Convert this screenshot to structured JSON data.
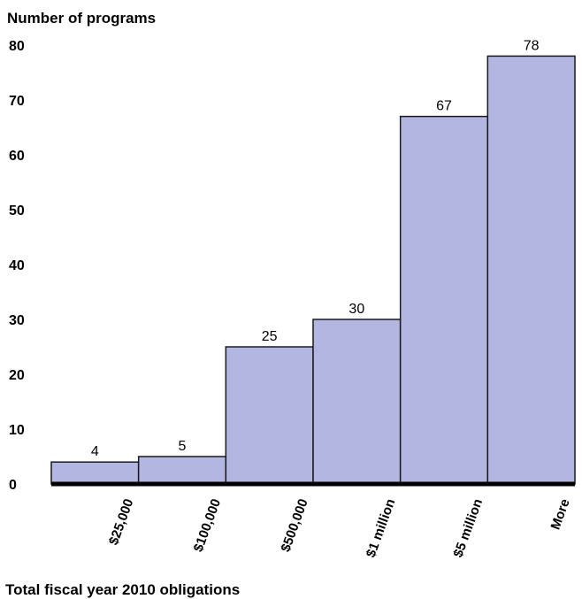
{
  "chart_data": {
    "type": "bar",
    "ylabel": "Number of programs",
    "xlabel": "Total fiscal year 2010 obligations",
    "categories": [
      "$25,000",
      "$100,000",
      "$500,000",
      "$1 million",
      "$5 million",
      "More"
    ],
    "values": [
      4,
      5,
      25,
      30,
      67,
      78
    ],
    "data_labels": [
      "4",
      "5",
      "25",
      "30",
      "67",
      "78"
    ],
    "yticks": [
      "0",
      "10",
      "20",
      "30",
      "40",
      "50",
      "60",
      "70",
      "80"
    ],
    "ylim": [
      0,
      80
    ],
    "grid": false,
    "legend": "none",
    "colors": {
      "bar_fill": "#b3b6e0",
      "bar_stroke": "#1a1a1a",
      "axis": "#000000"
    }
  }
}
